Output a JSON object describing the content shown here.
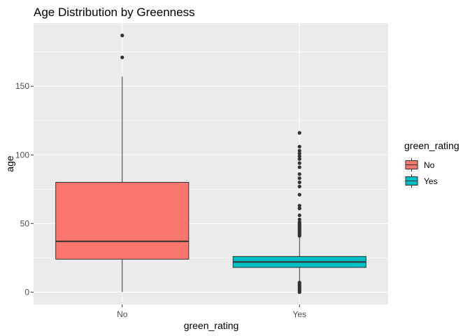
{
  "chart_data": {
    "type": "box",
    "title": "Age Distribution by Greenness",
    "xlabel": "green_rating",
    "ylabel": "age",
    "ylim": [
      -9,
      196
    ],
    "yticks": [
      0,
      50,
      100,
      150
    ],
    "categories": [
      "No",
      "Yes"
    ],
    "grid": true,
    "legend": {
      "title": "green_rating",
      "placement": "right",
      "entries": [
        {
          "label": "No",
          "color": "#F8766D"
        },
        {
          "label": "Yes",
          "color": "#00BFC4"
        }
      ]
    },
    "boxes": [
      {
        "category": "No",
        "color": "#F8766D",
        "whisker_low": 0,
        "q1": 24,
        "median": 37,
        "q3": 80,
        "whisker_high": 157,
        "outliers": [
          171,
          187
        ]
      },
      {
        "category": "Yes",
        "color": "#00BFC4",
        "whisker_low": 8,
        "q1": 18,
        "median": 22,
        "q3": 26,
        "whisker_high": 40,
        "outliers": [
          0,
          1,
          2,
          3,
          4,
          5,
          6,
          7,
          41,
          42,
          43,
          44,
          45,
          46,
          47,
          48,
          49,
          50,
          51,
          53,
          56,
          61,
          63,
          71,
          77,
          80,
          83,
          86,
          91,
          94,
          97,
          99,
          101,
          103,
          106,
          116
        ]
      }
    ]
  }
}
